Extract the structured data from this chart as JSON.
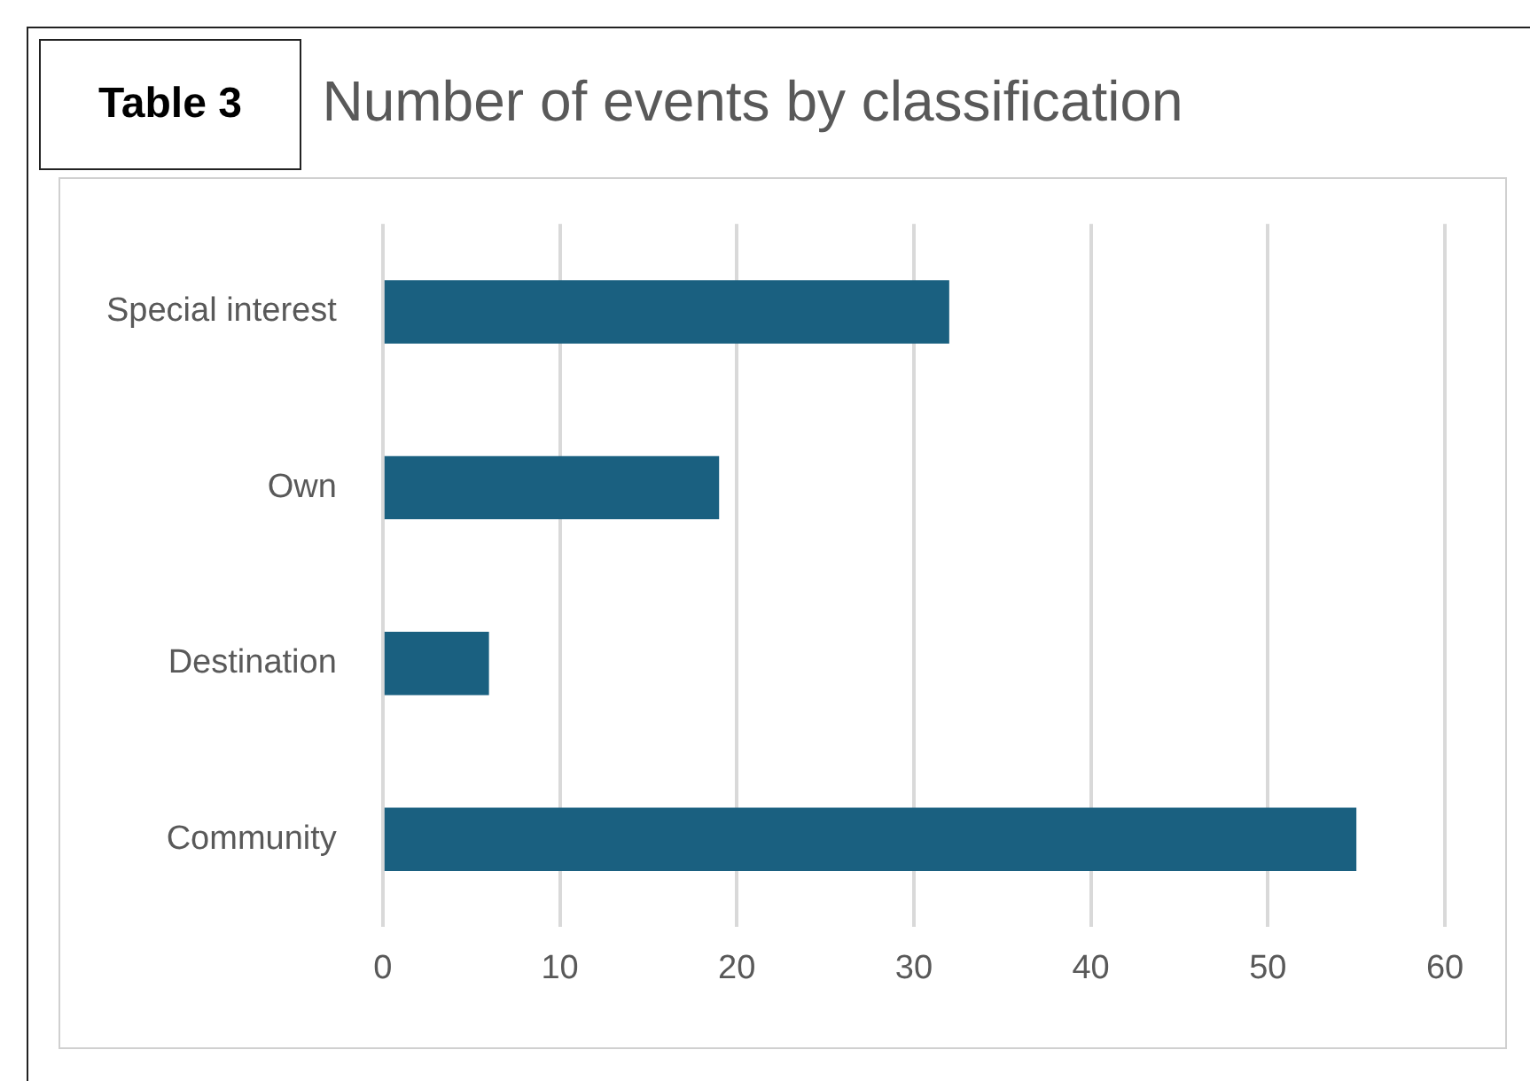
{
  "chart_data": {
    "type": "bar",
    "orientation": "horizontal",
    "title": "Number of events by classification",
    "annotations": [
      "Table 3"
    ],
    "categories": [
      "Special interest",
      "Own",
      "Destination",
      "Community"
    ],
    "values": [
      32,
      19,
      6,
      55
    ],
    "color": "#1a6080",
    "xlim": [
      0,
      60
    ],
    "xticks": [
      0,
      10,
      20,
      30,
      40,
      50,
      60
    ],
    "grid": "x"
  }
}
